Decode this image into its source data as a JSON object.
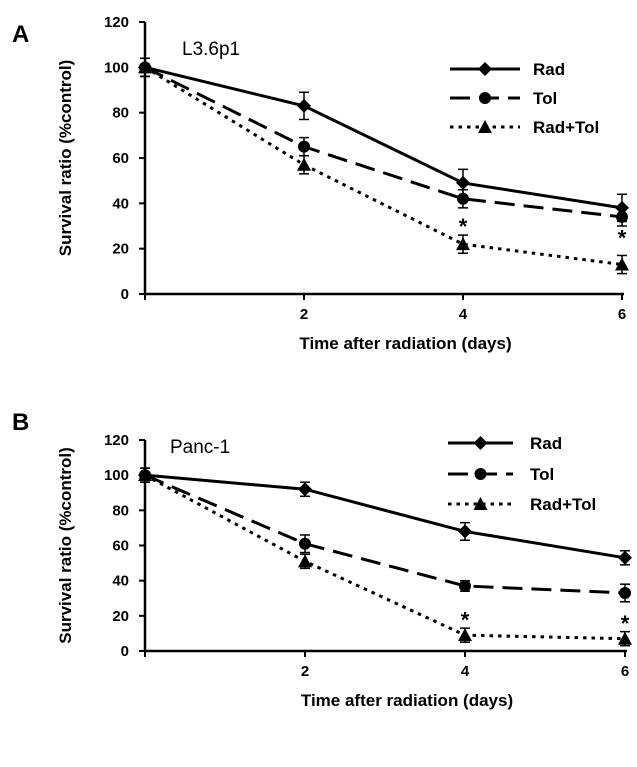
{
  "chart_data": [
    {
      "type": "line",
      "panel_label": "A",
      "cell_line": "L3.6p1",
      "xlabel": "Time after radiation (days)",
      "ylabel": "Survival ratio (%control)",
      "x": [
        0,
        2,
        4,
        6
      ],
      "x_tick_labels": [
        "2",
        "4",
        "6"
      ],
      "xlim": [
        0,
        6
      ],
      "ylim": [
        0,
        120
      ],
      "y_ticks": [
        0,
        20,
        40,
        60,
        80,
        100,
        120
      ],
      "grid": false,
      "legend_position": "top-right",
      "series": [
        {
          "name": "Rad",
          "values": [
            100,
            83,
            49,
            38
          ],
          "errors": [
            4,
            6,
            6,
            6
          ],
          "marker": "diamond",
          "dash": "solid"
        },
        {
          "name": "Tol",
          "values": [
            100,
            65,
            42,
            34
          ],
          "errors": [
            4,
            4,
            4,
            4
          ],
          "marker": "circle",
          "dash": "long-dash"
        },
        {
          "name": "Rad+Tol",
          "values": [
            100,
            57,
            22,
            13
          ],
          "errors": [
            4,
            4,
            4,
            4
          ],
          "marker": "triangle",
          "dash": "dotted"
        }
      ],
      "annotations": [
        {
          "text": "*",
          "x": 4,
          "y": 30
        },
        {
          "text": "*",
          "x": 6,
          "y": 25
        }
      ]
    },
    {
      "type": "line",
      "panel_label": "B",
      "cell_line": "Panc-1",
      "xlabel": "Time after radiation (days)",
      "ylabel": "Survival ratio (%control)",
      "x": [
        0,
        2,
        4,
        6
      ],
      "x_tick_labels": [
        "2",
        "4",
        "6"
      ],
      "xlim": [
        0,
        6
      ],
      "ylim": [
        0,
        120
      ],
      "y_ticks": [
        0,
        20,
        40,
        60,
        80,
        100,
        120
      ],
      "grid": false,
      "legend_position": "top-right",
      "series": [
        {
          "name": "Rad",
          "values": [
            100,
            92,
            68,
            53
          ],
          "errors": [
            4,
            4,
            5,
            4
          ],
          "marker": "diamond",
          "dash": "solid"
        },
        {
          "name": "Tol",
          "values": [
            100,
            61,
            37,
            33
          ],
          "errors": [
            4,
            5,
            3,
            5
          ],
          "marker": "circle",
          "dash": "long-dash"
        },
        {
          "name": "Rad+Tol",
          "values": [
            100,
            51,
            9,
            7
          ],
          "errors": [
            4,
            4,
            4,
            4
          ],
          "marker": "triangle",
          "dash": "dotted"
        }
      ],
      "annotations": [
        {
          "text": "*",
          "x": 4,
          "y": 18
        },
        {
          "text": "*",
          "x": 6,
          "y": 16
        }
      ]
    }
  ]
}
